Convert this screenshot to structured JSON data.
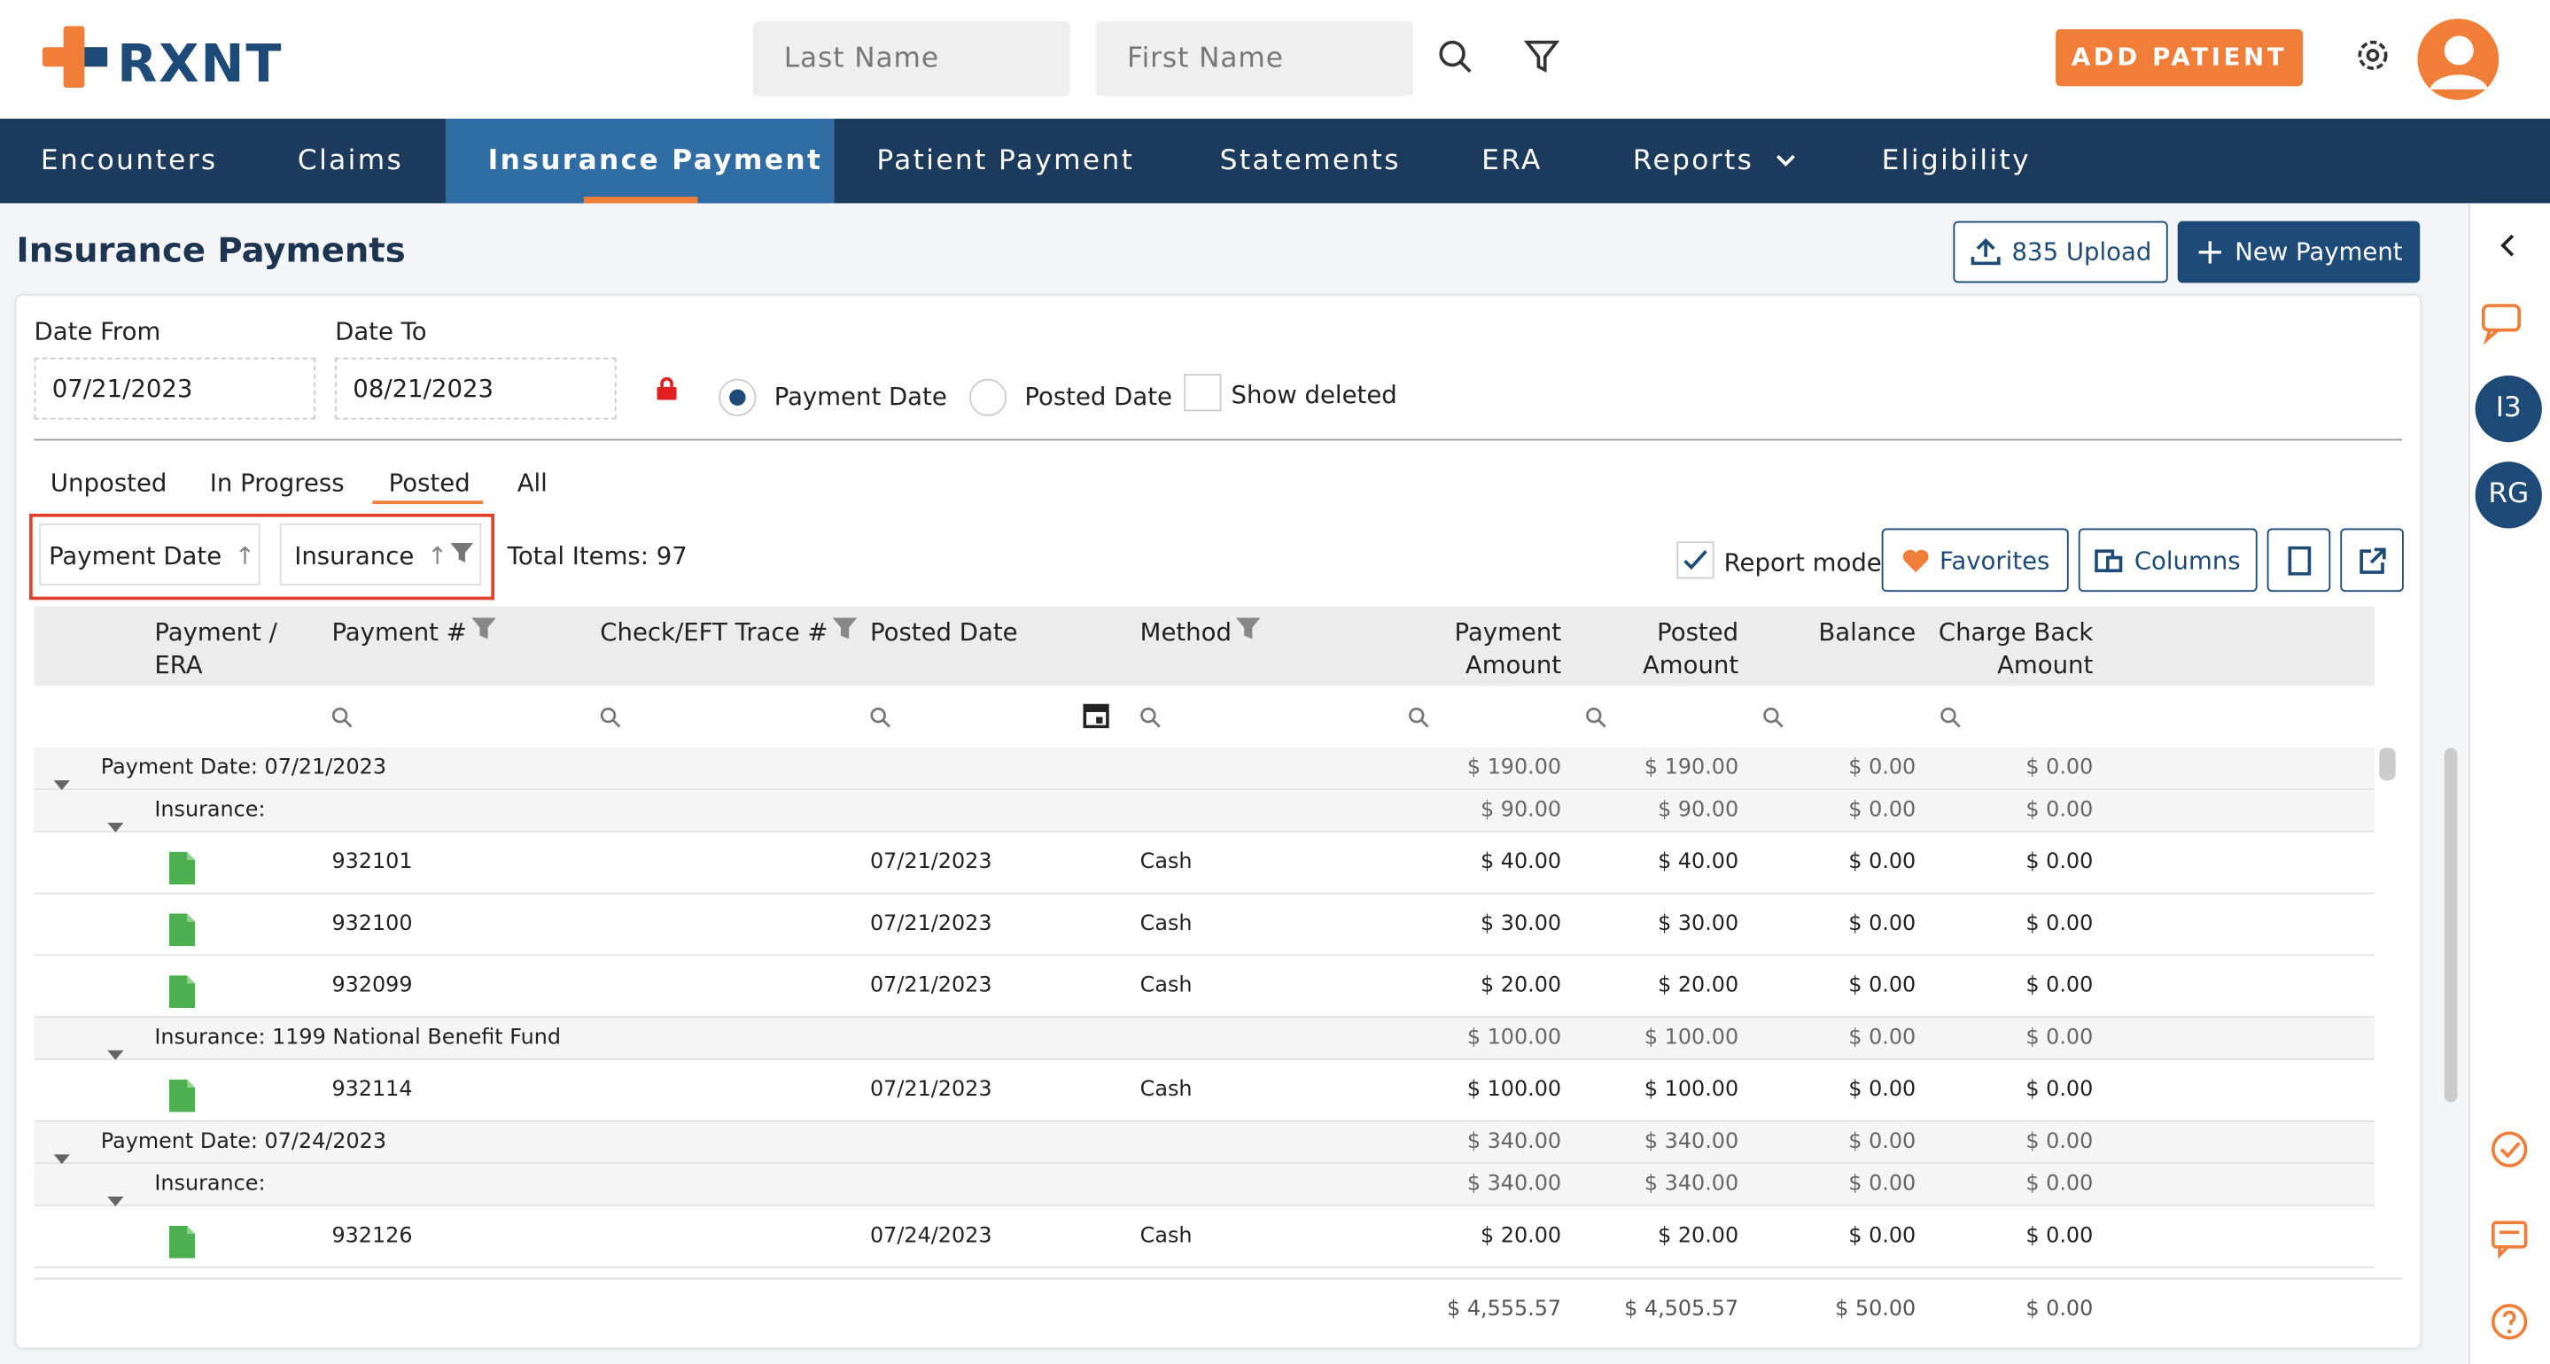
{
  "header": {
    "logo": "RXNT",
    "search_last": "Last Name",
    "search_first": "First Name",
    "add_patient": "ADD PATIENT"
  },
  "nav": [
    "Encounters",
    "Claims",
    "Insurance Payment",
    "Patient Payment",
    "Statements",
    "ERA",
    "Reports",
    "Eligibility"
  ],
  "page": {
    "title": "Insurance Payments",
    "upload": "835 Upload",
    "new_payment": "New Payment"
  },
  "filters": {
    "date_from_label": "Date From",
    "date_from": "07/21/2023",
    "date_to_label": "Date To",
    "date_to": "08/21/2023",
    "payment_date": "Payment Date",
    "posted_date": "Posted Date",
    "show_deleted": "Show deleted"
  },
  "tabs": [
    "Unposted",
    "In Progress",
    "Posted",
    "All"
  ],
  "grouping": [
    "Payment Date",
    "Insurance"
  ],
  "total_items": "Total Items: 97",
  "toolbar": {
    "report_mode": "Report mode",
    "favorites": "Favorites",
    "columns": "Columns"
  },
  "table": {
    "columns": [
      "Payment / ERA",
      "Payment #",
      "Check/EFT Trace #",
      "Posted Date",
      "Method",
      "Payment Amount",
      "Posted Amount",
      "Balance",
      "Charge Back Amount"
    ],
    "groups": [
      {
        "label": "Payment Date: 07/21/2023",
        "amounts": [
          "$ 190.00",
          "$ 190.00",
          "$ 0.00",
          "$ 0.00"
        ],
        "subgroups": [
          {
            "label": "Insurance:",
            "amounts": [
              "$ 90.00",
              "$ 90.00",
              "$ 0.00",
              "$ 0.00"
            ],
            "rows": [
              {
                "payment_no": "932101",
                "posted_date": "07/21/2023",
                "method": "Cash",
                "amounts": [
                  "$ 40.00",
                  "$ 40.00",
                  "$ 0.00",
                  "$ 0.00"
                ]
              },
              {
                "payment_no": "932100",
                "posted_date": "07/21/2023",
                "method": "Cash",
                "amounts": [
                  "$ 30.00",
                  "$ 30.00",
                  "$ 0.00",
                  "$ 0.00"
                ]
              },
              {
                "payment_no": "932099",
                "posted_date": "07/21/2023",
                "method": "Cash",
                "amounts": [
                  "$ 20.00",
                  "$ 20.00",
                  "$ 0.00",
                  "$ 0.00"
                ]
              }
            ]
          },
          {
            "label": "Insurance: 1199 National Benefit Fund",
            "amounts": [
              "$ 100.00",
              "$ 100.00",
              "$ 0.00",
              "$ 0.00"
            ],
            "rows": [
              {
                "payment_no": "932114",
                "posted_date": "07/21/2023",
                "method": "Cash",
                "amounts": [
                  "$ 100.00",
                  "$ 100.00",
                  "$ 0.00",
                  "$ 0.00"
                ]
              }
            ]
          }
        ]
      },
      {
        "label": "Payment Date: 07/24/2023",
        "amounts": [
          "$ 340.00",
          "$ 340.00",
          "$ 0.00",
          "$ 0.00"
        ],
        "subgroups": [
          {
            "label": "Insurance:",
            "amounts": [
              "$ 340.00",
              "$ 340.00",
              "$ 0.00",
              "$ 0.00"
            ],
            "rows": [
              {
                "payment_no": "932126",
                "posted_date": "07/24/2023",
                "method": "Cash",
                "amounts": [
                  "$ 20.00",
                  "$ 20.00",
                  "$ 0.00",
                  "$ 0.00"
                ]
              }
            ]
          }
        ]
      }
    ],
    "totals": [
      "$ 4,555.57",
      "$ 4,505.57",
      "$ 50.00",
      "$ 0.00"
    ]
  },
  "sidebar": [
    "I3",
    "RG"
  ]
}
